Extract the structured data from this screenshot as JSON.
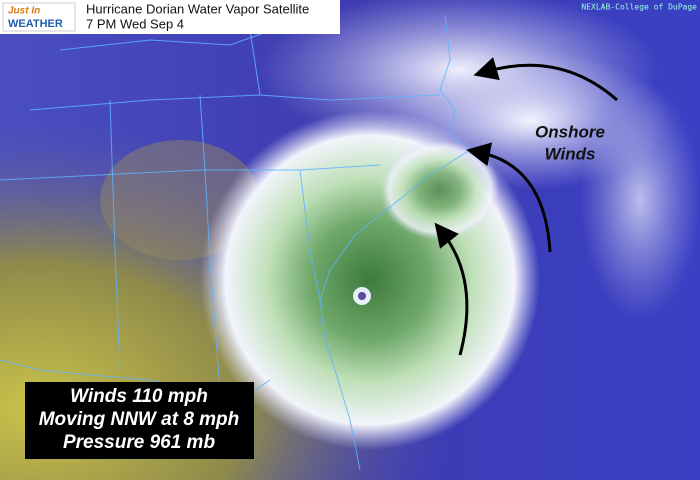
{
  "header": {
    "logo_top": "Just In",
    "logo_bottom": "WEATHER",
    "title": "Hurricane Dorian Water Vapor Satellite",
    "subtitle": "7 PM Wed Sep 4"
  },
  "credit": "NEXLAB-College of DuPage",
  "annotation": {
    "lines": [
      "Onshore",
      "Winds"
    ]
  },
  "info_box": {
    "lines": [
      "Winds 110 mph",
      "Moving NNW at 8 mph",
      "Pressure 961 mb"
    ]
  }
}
